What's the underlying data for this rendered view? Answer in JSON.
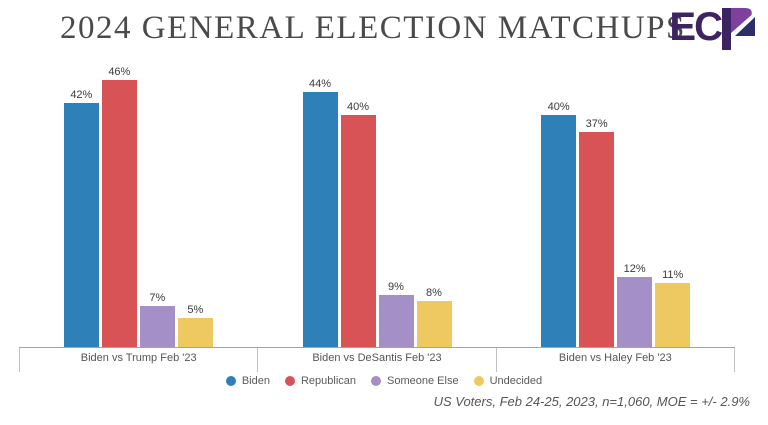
{
  "header": {
    "title": "2024 GENERAL ELECTION MATCHUPS",
    "logo": {
      "text": "EC",
      "dark": "#3d2361",
      "light": "#7e3f9d",
      "navy": "#2b2e6b"
    }
  },
  "chart_data": {
    "type": "bar",
    "title": "2024 GENERAL ELECTION MATCHUPS",
    "categories": [
      "Biden vs Trump Feb '23",
      "Biden vs DeSantis Feb '23",
      "Biden vs Haley Feb '23"
    ],
    "series": [
      {
        "name": "Biden",
        "color": "#2e80b9",
        "values": [
          42,
          44,
          40
        ]
      },
      {
        "name": "Republican",
        "color": "#d85356",
        "values": [
          46,
          40,
          37
        ]
      },
      {
        "name": "Someone Else",
        "color": "#a48fc6",
        "values": [
          7,
          9,
          12
        ]
      },
      {
        "name": "Undecided",
        "color": "#eec861",
        "values": [
          5,
          8,
          11
        ]
      }
    ],
    "value_suffix": "%",
    "ylim": [
      0,
      50
    ],
    "xlabel": "",
    "ylabel": "",
    "grid": false,
    "legend_position": "bottom",
    "data_labels": true
  },
  "footer": {
    "note": "US Voters, Feb 24-25, 2023, n=1,060, MOE = +/- 2.9%"
  }
}
